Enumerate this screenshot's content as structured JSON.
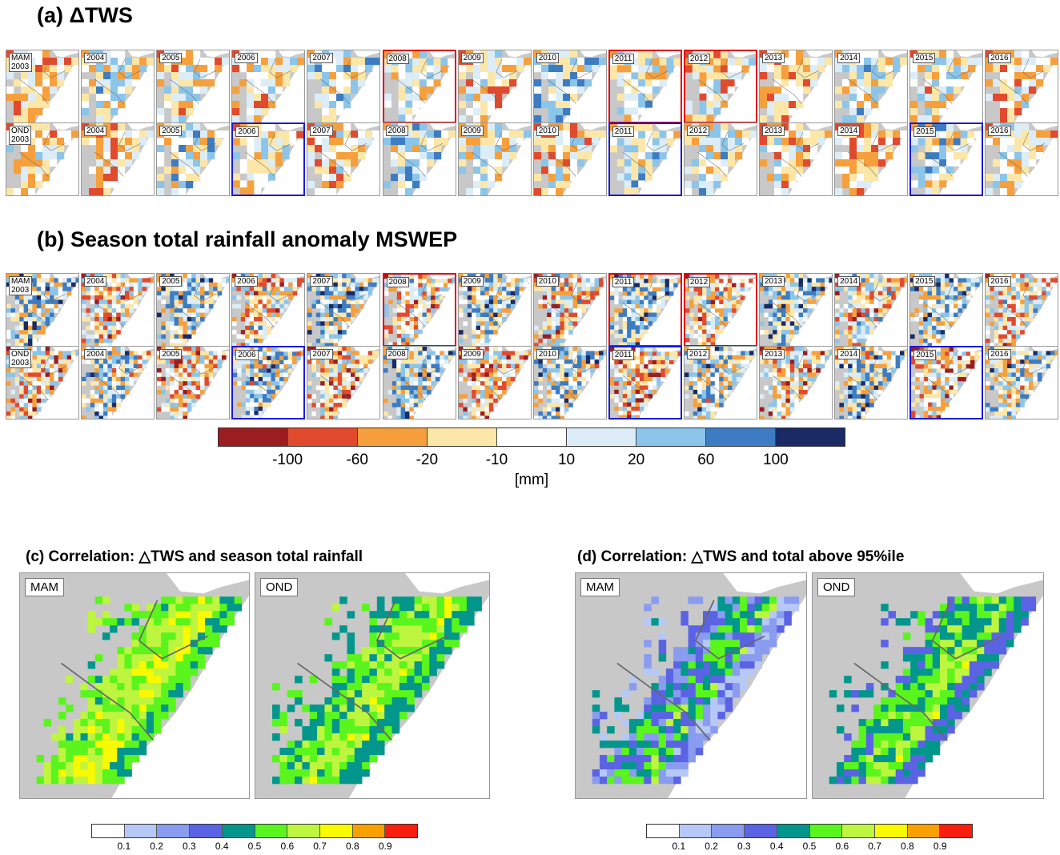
{
  "titles": {
    "a": "(a) ΔTWS",
    "b": "(b) Season total rainfall anomaly MSWEP",
    "c": "(c) Correlation: △TWS and season total rainfall",
    "d": "(d) Correlation: △TWS and total above 95%ile"
  },
  "years": [
    "2003",
    "2004",
    "2005",
    "2006",
    "2007",
    "2008",
    "2009",
    "2010",
    "2011",
    "2012",
    "2013",
    "2014",
    "2015",
    "2016"
  ],
  "row_labels": {
    "mam_first": "MAM\n2003",
    "ond_first": "OND\n2003",
    "mam": "MAM",
    "ond": "OND"
  },
  "highlights": {
    "mam_red_years": [
      "2008",
      "2011",
      "2012"
    ],
    "ond_blue_years": [
      "2006",
      "2011",
      "2015"
    ],
    "red_color": "#e0000f",
    "blue_color": "#1b1bd6"
  },
  "anomaly_colorbar": {
    "colors": [
      "#9b1d20",
      "#e24a2e",
      "#f6a03d",
      "#fce7a8",
      "#ffffff",
      "#dcedf7",
      "#8cc5ea",
      "#3d7cc2",
      "#1a2a64"
    ],
    "tick_labels": [
      "-100",
      "-60",
      "-20",
      "-10",
      "10",
      "20",
      "60",
      "100"
    ],
    "unit": "[mm]"
  },
  "corr_colorbar": {
    "colors": [
      "#ffffff",
      "#b6c8f5",
      "#8a9cf0",
      "#5b63e5",
      "#03968c",
      "#5af51c",
      "#bdf53f",
      "#f9f900",
      "#f9a000",
      "#f91e0e"
    ],
    "tick_labels": [
      "0.1",
      "0.2",
      "0.3",
      "0.4",
      "0.5",
      "0.6",
      "0.7",
      "0.8",
      "0.9"
    ]
  },
  "map_colors": {
    "land": "#c8c8c8",
    "sea": "#ffffff",
    "border": "#666666"
  }
}
